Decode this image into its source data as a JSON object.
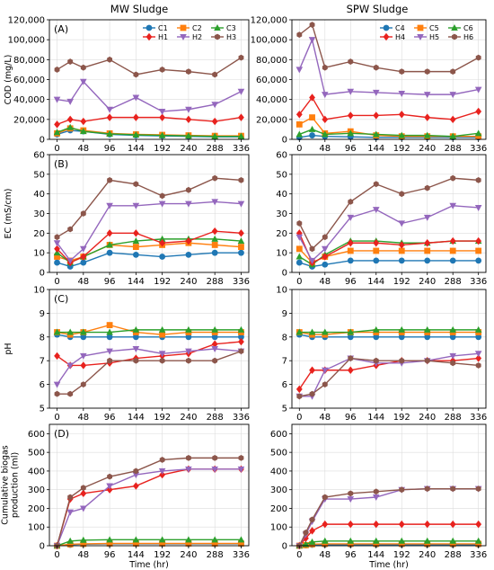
{
  "figure": {
    "column_titles": [
      "MW Sludge",
      "SPW Sludge"
    ],
    "xlabel": "Time (hr)",
    "row_ylabels": [
      "COD (mg/L)",
      "EC (mS/cm)",
      "pH",
      "Cumulative biogas production (ml)"
    ],
    "panel_labels": [
      "(A)",
      "(B)",
      "(C)",
      "(D)"
    ]
  },
  "colors": {
    "C1": "#1f77b4",
    "C2": "#ff7f0e",
    "C3": "#2ca02c",
    "H1": "#e8221e",
    "H2": "#9467bd",
    "H3": "#8c564b",
    "C4": "#1f77b4",
    "C5": "#ff7f0e",
    "C6": "#2ca02c",
    "H4": "#e8221e",
    "H5": "#9467bd",
    "H6": "#8c564b"
  },
  "chart_data": [
    {
      "type": "line",
      "panel": "(A)",
      "column": "MW Sludge",
      "ylabel": "COD (mg/L)",
      "xlabel": "",
      "x": [
        0,
        24,
        48,
        96,
        144,
        192,
        240,
        288,
        336
      ],
      "xticks": [
        0,
        48,
        96,
        144,
        192,
        240,
        288,
        336
      ],
      "ylim": [
        0,
        120000
      ],
      "yticks": [
        0,
        20000,
        40000,
        60000,
        80000,
        100000,
        120000
      ],
      "ytick_labels": [
        "0",
        "20,000",
        "40,000",
        "60,000",
        "80,000",
        "100,000",
        "120,000"
      ],
      "legend": "top-right",
      "series": [
        {
          "name": "C1",
          "marker": "circle",
          "values": [
            5000,
            9000,
            8000,
            5000,
            4000,
            3500,
            3000,
            2500,
            2500
          ]
        },
        {
          "name": "C2",
          "marker": "square",
          "values": [
            6000,
            11000,
            9000,
            6000,
            5000,
            4500,
            4000,
            3500,
            3500
          ]
        },
        {
          "name": "C3",
          "marker": "triangle-up",
          "values": [
            7000,
            12000,
            8000,
            5500,
            4500,
            4000,
            3500,
            3000,
            3000
          ]
        },
        {
          "name": "H1",
          "marker": "diamond",
          "values": [
            15000,
            20000,
            18000,
            22000,
            22000,
            22000,
            20000,
            18000,
            22000
          ]
        },
        {
          "name": "H2",
          "marker": "triangle-down",
          "values": [
            40000,
            38000,
            58000,
            30000,
            42000,
            28000,
            30000,
            35000,
            48000
          ]
        },
        {
          "name": "H3",
          "marker": "hexagon",
          "values": [
            70000,
            78000,
            72000,
            80000,
            65000,
            70000,
            68000,
            65000,
            82000
          ]
        }
      ]
    },
    {
      "type": "line",
      "panel": "",
      "column": "SPW Sludge",
      "ylabel": "",
      "xlabel": "",
      "x": [
        0,
        24,
        48,
        96,
        144,
        192,
        240,
        288,
        336
      ],
      "xticks": [
        0,
        48,
        96,
        144,
        192,
        240,
        288,
        336
      ],
      "ylim": [
        0,
        120000
      ],
      "yticks": [
        0,
        20000,
        40000,
        60000,
        80000,
        100000,
        120000
      ],
      "ytick_labels": [
        "0",
        "20,000",
        "40,000",
        "60,000",
        "80,000",
        "100,000",
        "120,000"
      ],
      "legend": "top-right",
      "series": [
        {
          "name": "C4",
          "marker": "circle",
          "values": [
            2000,
            4000,
            3000,
            2500,
            2000,
            2000,
            2000,
            2000,
            2000
          ]
        },
        {
          "name": "C5",
          "marker": "square",
          "values": [
            15000,
            22000,
            6000,
            8000,
            4000,
            3000,
            3000,
            3000,
            3000
          ]
        },
        {
          "name": "C6",
          "marker": "triangle-up",
          "values": [
            5000,
            10000,
            5000,
            6000,
            5000,
            4000,
            4000,
            3000,
            6000
          ]
        },
        {
          "name": "H4",
          "marker": "diamond",
          "values": [
            25000,
            42000,
            20000,
            24000,
            24000,
            25000,
            22000,
            20000,
            28000
          ]
        },
        {
          "name": "H5",
          "marker": "triangle-down",
          "values": [
            70000,
            100000,
            45000,
            48000,
            47000,
            46000,
            45000,
            45000,
            50000
          ]
        },
        {
          "name": "H6",
          "marker": "hexagon",
          "values": [
            105000,
            115000,
            72000,
            78000,
            72000,
            68000,
            68000,
            68000,
            82000
          ]
        }
      ]
    },
    {
      "type": "line",
      "panel": "(B)",
      "column": "MW Sludge",
      "ylabel": "EC (mS/cm)",
      "xlabel": "",
      "x": [
        0,
        24,
        48,
        96,
        144,
        192,
        240,
        288,
        336
      ],
      "xticks": [
        0,
        48,
        96,
        144,
        192,
        240,
        288,
        336
      ],
      "ylim": [
        0,
        60
      ],
      "yticks": [
        0,
        10,
        20,
        30,
        40,
        50,
        60
      ],
      "ytick_labels": [
        "0",
        "10",
        "20",
        "30",
        "40",
        "50",
        "60"
      ],
      "series": [
        {
          "name": "C1",
          "marker": "circle",
          "values": [
            5,
            3,
            5,
            10,
            9,
            8,
            9,
            10,
            10
          ]
        },
        {
          "name": "C2",
          "marker": "square",
          "values": [
            8,
            6,
            8,
            14,
            13,
            14,
            15,
            14,
            13
          ]
        },
        {
          "name": "C3",
          "marker": "triangle-up",
          "values": [
            10,
            5,
            8,
            14,
            16,
            17,
            17,
            17,
            16
          ]
        },
        {
          "name": "H1",
          "marker": "diamond",
          "values": [
            12,
            5,
            8,
            20,
            20,
            15,
            16,
            21,
            20
          ]
        },
        {
          "name": "H2",
          "marker": "triangle-down",
          "values": [
            15,
            6,
            12,
            34,
            34,
            35,
            35,
            36,
            35
          ]
        },
        {
          "name": "H3",
          "marker": "hexagon",
          "values": [
            18,
            22,
            30,
            47,
            45,
            39,
            42,
            48,
            47
          ]
        }
      ]
    },
    {
      "type": "line",
      "panel": "",
      "column": "SPW Sludge",
      "ylabel": "",
      "xlabel": "",
      "x": [
        0,
        24,
        48,
        96,
        144,
        192,
        240,
        288,
        336
      ],
      "xticks": [
        0,
        48,
        96,
        144,
        192,
        240,
        288,
        336
      ],
      "ylim": [
        0,
        60
      ],
      "yticks": [
        0,
        10,
        20,
        30,
        40,
        50,
        60
      ],
      "ytick_labels": [
        "0",
        "10",
        "20",
        "30",
        "40",
        "50",
        "60"
      ],
      "series": [
        {
          "name": "C4",
          "marker": "circle",
          "values": [
            5,
            3,
            4,
            6,
            6,
            6,
            6,
            6,
            6
          ]
        },
        {
          "name": "C5",
          "marker": "square",
          "values": [
            12,
            5,
            8,
            11,
            11,
            11,
            11,
            11,
            11
          ]
        },
        {
          "name": "C6",
          "marker": "triangle-up",
          "values": [
            8,
            4,
            9,
            16,
            16,
            15,
            15,
            16,
            16
          ]
        },
        {
          "name": "H4",
          "marker": "diamond",
          "values": [
            20,
            5,
            8,
            15,
            15,
            14,
            15,
            16,
            16
          ]
        },
        {
          "name": "H5",
          "marker": "triangle-down",
          "values": [
            18,
            6,
            12,
            28,
            32,
            25,
            28,
            34,
            33
          ]
        },
        {
          "name": "H6",
          "marker": "hexagon",
          "values": [
            25,
            12,
            18,
            36,
            45,
            40,
            43,
            48,
            47
          ]
        }
      ]
    },
    {
      "type": "line",
      "panel": "(C)",
      "column": "MW Sludge",
      "ylabel": "pH",
      "xlabel": "",
      "x": [
        0,
        24,
        48,
        96,
        144,
        192,
        240,
        288,
        336
      ],
      "xticks": [
        0,
        48,
        96,
        144,
        192,
        240,
        288,
        336
      ],
      "ylim": [
        5,
        10
      ],
      "yticks": [
        5,
        6,
        7,
        8,
        9,
        10
      ],
      "ytick_labels": [
        "5",
        "6",
        "7",
        "8",
        "9",
        "10"
      ],
      "series": [
        {
          "name": "C1",
          "marker": "circle",
          "values": [
            8.1,
            8.0,
            8.0,
            8.0,
            8.0,
            8.0,
            8.0,
            8.0,
            8.0
          ]
        },
        {
          "name": "C2",
          "marker": "square",
          "values": [
            8.2,
            8.1,
            8.2,
            8.5,
            8.2,
            8.1,
            8.2,
            8.2,
            8.2
          ]
        },
        {
          "name": "C3",
          "marker": "triangle-up",
          "values": [
            8.2,
            8.2,
            8.2,
            8.2,
            8.3,
            8.3,
            8.3,
            8.3,
            8.3
          ]
        },
        {
          "name": "H1",
          "marker": "diamond",
          "values": [
            7.2,
            6.8,
            6.8,
            6.9,
            7.1,
            7.2,
            7.3,
            7.7,
            7.8
          ]
        },
        {
          "name": "H2",
          "marker": "triangle-down",
          "values": [
            6.0,
            6.8,
            7.2,
            7.4,
            7.5,
            7.3,
            7.4,
            7.5,
            7.4
          ]
        },
        {
          "name": "H3",
          "marker": "hexagon",
          "values": [
            5.6,
            5.6,
            6.0,
            7.0,
            7.0,
            7.0,
            7.0,
            7.0,
            7.4
          ]
        }
      ]
    },
    {
      "type": "line",
      "panel": "",
      "column": "SPW Sludge",
      "ylabel": "",
      "xlabel": "",
      "x": [
        0,
        24,
        48,
        96,
        144,
        192,
        240,
        288,
        336
      ],
      "xticks": [
        0,
        48,
        96,
        144,
        192,
        240,
        288,
        336
      ],
      "ylim": [
        5,
        10
      ],
      "yticks": [
        5,
        6,
        7,
        8,
        9,
        10
      ],
      "ytick_labels": [
        "5",
        "6",
        "7",
        "8",
        "9",
        "10"
      ],
      "series": [
        {
          "name": "C4",
          "marker": "circle",
          "values": [
            8.1,
            8.0,
            8.0,
            8.0,
            8.0,
            8.0,
            8.0,
            8.0,
            8.0
          ]
        },
        {
          "name": "C5",
          "marker": "square",
          "values": [
            8.2,
            8.1,
            8.1,
            8.2,
            8.2,
            8.2,
            8.2,
            8.2,
            8.2
          ]
        },
        {
          "name": "C6",
          "marker": "triangle-up",
          "values": [
            8.2,
            8.2,
            8.2,
            8.2,
            8.3,
            8.3,
            8.3,
            8.3,
            8.3
          ]
        },
        {
          "name": "H4",
          "marker": "diamond",
          "values": [
            5.8,
            6.6,
            6.6,
            6.6,
            6.8,
            7.0,
            7.0,
            7.0,
            7.1
          ]
        },
        {
          "name": "H5",
          "marker": "triangle-down",
          "values": [
            5.5,
            5.5,
            6.6,
            7.1,
            6.9,
            6.9,
            7.0,
            7.2,
            7.3
          ]
        },
        {
          "name": "H6",
          "marker": "hexagon",
          "values": [
            5.5,
            5.6,
            6.0,
            7.1,
            7.0,
            7.0,
            7.0,
            6.9,
            6.8
          ]
        }
      ]
    },
    {
      "type": "line",
      "panel": "(D)",
      "column": "MW Sludge",
      "ylabel": "Cumulative biogas production (ml)",
      "xlabel": "Time (hr)",
      "x": [
        0,
        24,
        48,
        96,
        144,
        192,
        240,
        288,
        336
      ],
      "xticks": [
        0,
        48,
        96,
        144,
        192,
        240,
        288,
        336
      ],
      "ylim": [
        0,
        650
      ],
      "yticks": [
        0,
        100,
        200,
        300,
        400,
        500,
        600
      ],
      "ytick_labels": [
        "0",
        "100",
        "200",
        "300",
        "400",
        "500",
        "600"
      ],
      "series": [
        {
          "name": "C1",
          "marker": "circle",
          "values": [
            0,
            5,
            8,
            10,
            10,
            10,
            10,
            10,
            10
          ]
        },
        {
          "name": "C2",
          "marker": "square",
          "values": [
            0,
            8,
            10,
            12,
            12,
            12,
            12,
            12,
            12
          ]
        },
        {
          "name": "C3",
          "marker": "triangle-up",
          "values": [
            0,
            25,
            30,
            32,
            32,
            32,
            32,
            32,
            32
          ]
        },
        {
          "name": "H1",
          "marker": "diamond",
          "values": [
            0,
            250,
            280,
            300,
            320,
            380,
            410,
            410,
            410
          ]
        },
        {
          "name": "H2",
          "marker": "triangle-down",
          "values": [
            0,
            180,
            200,
            320,
            380,
            400,
            410,
            410,
            410
          ]
        },
        {
          "name": "H3",
          "marker": "hexagon",
          "values": [
            0,
            260,
            310,
            370,
            400,
            460,
            470,
            470,
            470
          ]
        }
      ]
    },
    {
      "type": "line",
      "panel": "",
      "column": "SPW Sludge",
      "ylabel": "",
      "xlabel": "Time (hr)",
      "x": [
        0,
        12,
        24,
        48,
        96,
        144,
        192,
        240,
        288,
        336
      ],
      "xticks": [
        0,
        48,
        96,
        144,
        192,
        240,
        288,
        336
      ],
      "ylim": [
        0,
        650
      ],
      "yticks": [
        0,
        100,
        200,
        300,
        400,
        500,
        600
      ],
      "ytick_labels": [
        "0",
        "100",
        "200",
        "300",
        "400",
        "500",
        "600"
      ],
      "series": [
        {
          "name": "C4",
          "marker": "circle",
          "values": [
            0,
            2,
            5,
            6,
            6,
            6,
            6,
            6,
            6,
            6
          ]
        },
        {
          "name": "C5",
          "marker": "square",
          "values": [
            0,
            3,
            8,
            10,
            10,
            10,
            10,
            10,
            10,
            10
          ]
        },
        {
          "name": "C6",
          "marker": "triangle-up",
          "values": [
            0,
            8,
            20,
            25,
            25,
            25,
            25,
            25,
            25,
            25
          ]
        },
        {
          "name": "H4",
          "marker": "diamond",
          "values": [
            0,
            40,
            80,
            115,
            115,
            115,
            115,
            115,
            115,
            115
          ]
        },
        {
          "name": "H5",
          "marker": "triangle-down",
          "values": [
            0,
            60,
            130,
            250,
            250,
            260,
            300,
            305,
            305,
            305
          ]
        },
        {
          "name": "H6",
          "marker": "hexagon",
          "values": [
            0,
            70,
            140,
            260,
            280,
            290,
            300,
            305,
            305,
            305
          ]
        }
      ]
    }
  ]
}
